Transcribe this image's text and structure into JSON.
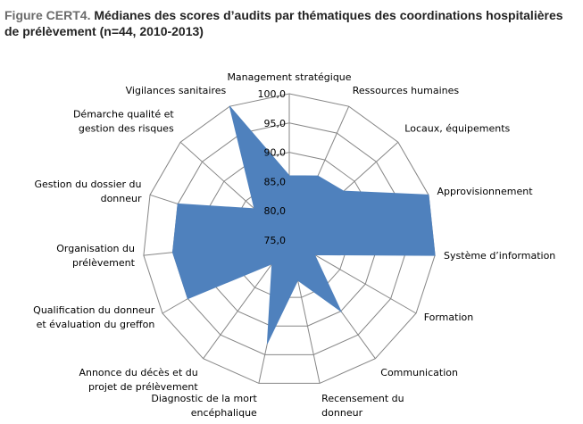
{
  "title": {
    "label": "Figure CERT4.",
    "text": "Médianes des scores d’audits par thématiques des coordinations hospitalières de prélèvement (n=44, 2010-2013)"
  },
  "chart_data": {
    "type": "radar",
    "rmin": 75,
    "rmax": 100,
    "ticks": [
      "75,0",
      "80,0",
      "85,0",
      "90,0",
      "95,0",
      "100,0"
    ],
    "tick_values": [
      75,
      80,
      85,
      90,
      95,
      100
    ],
    "grid": true,
    "fill_color": "#4f81bd",
    "grid_color": "#868686",
    "categories": [
      "Management stratégique",
      "Ressources humaines",
      "Locaux, équipements",
      "Approvisionnement",
      "Système d’information",
      "Formation",
      "Communication",
      "Recensement du donneur",
      "Diagnostic de la mort encéphalique",
      "Annonce du décès et du projet de prélèvement",
      "Qualification du donneur et évaluation du greffon",
      "Organisation du prélèvement",
      "Gestion du dossier du donneur",
      "Démarche qualité et gestion des risques",
      "Vigilances sanitaires"
    ],
    "category_lines": [
      [
        "Management stratégique"
      ],
      [
        "Ressources humaines"
      ],
      [
        "Locaux, équipements"
      ],
      [
        "Approvisionnement"
      ],
      [
        "Système d’information"
      ],
      [
        "Formation"
      ],
      [
        "Communication"
      ],
      [
        "Recensement du",
        "donneur"
      ],
      [
        "Diagnostic de la mort",
        "encéphalique"
      ],
      [
        "Annonce du décès et du",
        "projet de prélèvement"
      ],
      [
        "Qualification du donneur",
        "et évaluation du greffon"
      ],
      [
        "Organisation du",
        "prélèvement"
      ],
      [
        "Gestion du dossier du",
        "donneur"
      ],
      [
        "Démarche qualité et",
        "gestion des risques"
      ],
      [
        "Vigilances sanitaires"
      ]
    ],
    "values": [
      86.0,
      87.0,
      87.5,
      100.0,
      100.0,
      80.0,
      90.0,
      82.0,
      93.0,
      80.0,
      95.0,
      95.0,
      95.0,
      83.0,
      100.0
    ]
  }
}
